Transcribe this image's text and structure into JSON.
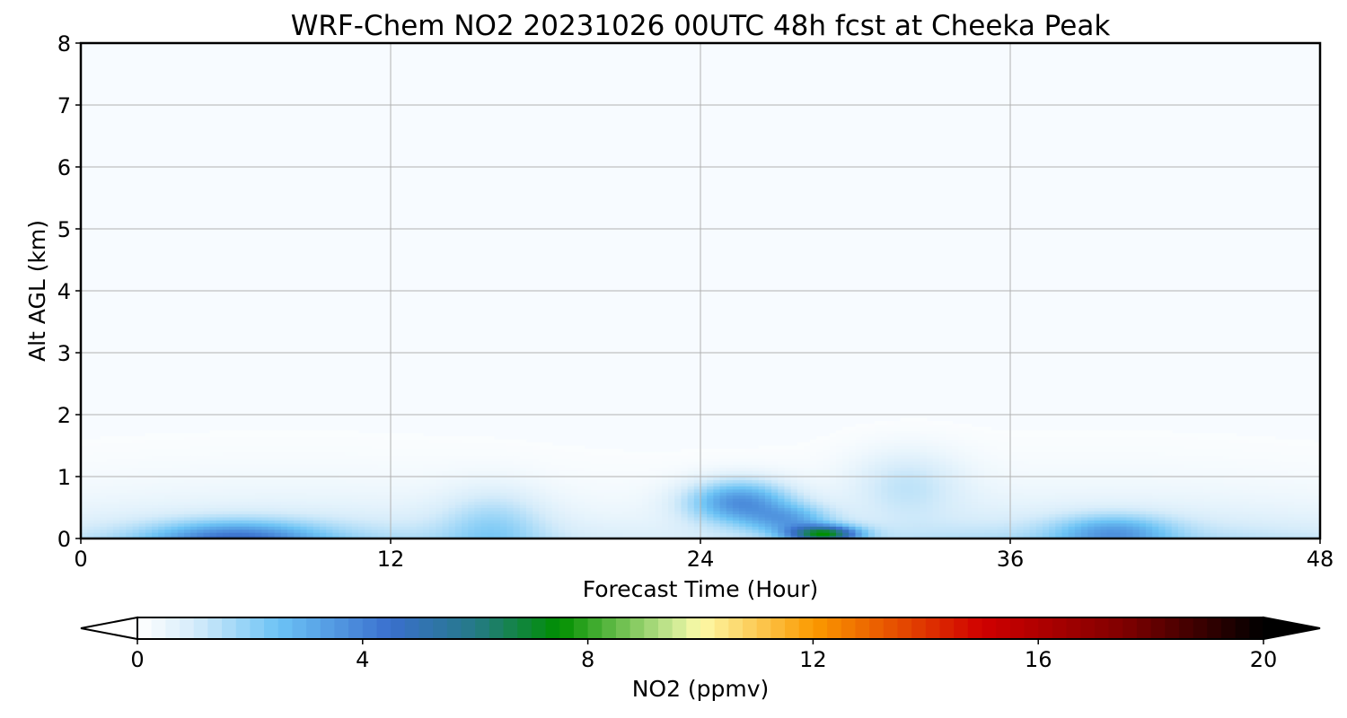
{
  "chart_data": {
    "type": "heatmap",
    "title": "WRF-Chem NO2  20231026 00UTC 48h fcst at Cheeka Peak",
    "xlabel": "Forecast Time (Hour)",
    "ylabel": "Alt AGL (km)",
    "xlim": [
      0,
      48
    ],
    "ylim": [
      0,
      8
    ],
    "xticks": [
      "0",
      "12",
      "24",
      "36",
      "48"
    ],
    "yticks": [
      "0",
      "1",
      "2",
      "3",
      "4",
      "5",
      "6",
      "7",
      "8"
    ],
    "grid": true,
    "colorbar": {
      "label": "NO2  (ppmv)",
      "range": [
        0,
        20
      ],
      "ticks": [
        "0",
        "4",
        "8",
        "12",
        "16",
        "20"
      ],
      "extend": "both",
      "stops": [
        {
          "value": 0,
          "color": "#ffffff"
        },
        {
          "value": 1,
          "color": "#d6ecfa"
        },
        {
          "value": 2.5,
          "color": "#6cc3f5"
        },
        {
          "value": 4.5,
          "color": "#3a6fcd"
        },
        {
          "value": 6,
          "color": "#257a86"
        },
        {
          "value": 7.5,
          "color": "#008f00"
        },
        {
          "value": 9.5,
          "color": "#c8e892"
        },
        {
          "value": 10,
          "color": "#fdfaa8"
        },
        {
          "value": 12,
          "color": "#fb9a00"
        },
        {
          "value": 15,
          "color": "#d00000"
        },
        {
          "value": 17.5,
          "color": "#800000"
        },
        {
          "value": 20,
          "color": "#000000"
        }
      ]
    },
    "features": [
      {
        "hour": 6,
        "alt": 0.0,
        "sx": 3.2,
        "sy": 0.28,
        "amp": 3.0
      },
      {
        "hour": 16,
        "alt": 0.2,
        "sx": 2.0,
        "sy": 0.6,
        "amp": 1.2
      },
      {
        "hour": 25.5,
        "alt": 0.6,
        "sx": 2.0,
        "sy": 0.35,
        "amp": 3.3
      },
      {
        "hour": 27.5,
        "alt": 0.3,
        "sx": 1.6,
        "sy": 0.25,
        "amp": 2.2
      },
      {
        "hour": 28.8,
        "alt": 0.08,
        "sx": 1.3,
        "sy": 0.13,
        "amp": 6.0
      },
      {
        "hour": 32,
        "alt": 0.9,
        "sx": 2.2,
        "sy": 0.55,
        "amp": 1.0
      },
      {
        "hour": 40,
        "alt": 0.1,
        "sx": 2.2,
        "sy": 0.28,
        "amp": 2.2
      }
    ],
    "background_layer": {
      "amp": 1.6,
      "scale_height_km": 0.55,
      "base": 0.05
    }
  }
}
